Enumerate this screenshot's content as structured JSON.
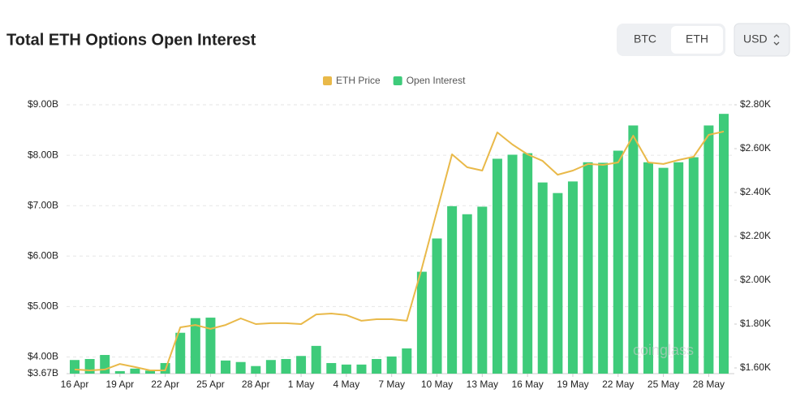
{
  "chart_data": {
    "type": "bar",
    "title": "Total ETH Options Open Interest",
    "watermark": "coinglass",
    "categories": [
      "16 Apr",
      null,
      null,
      "19 Apr",
      null,
      null,
      "22 Apr",
      null,
      null,
      "25 Apr",
      null,
      null,
      "28 Apr",
      null,
      null,
      "1 May",
      null,
      null,
      "4 May",
      null,
      null,
      "7 May",
      null,
      null,
      "10 May",
      null,
      null,
      "13 May",
      null,
      null,
      "16 May",
      null,
      null,
      "19 May",
      null,
      null,
      "22 May",
      null,
      null,
      "25 May",
      null,
      null,
      "28 May",
      null
    ],
    "series": [
      {
        "name": "ETH Price",
        "type": "line",
        "axis": "y2",
        "color": "#e9b949",
        "values": [
          1593,
          1589,
          1593,
          1618,
          1604,
          1589,
          1589,
          1785,
          1796,
          1778,
          1796,
          1826,
          1800,
          1804,
          1804,
          1800,
          1844,
          1848,
          1841,
          1815,
          1822,
          1822,
          1815,
          2055,
          2315,
          2574,
          2515,
          2500,
          2674,
          2619,
          2574,
          2544,
          2481,
          2500,
          2530,
          2526,
          2537,
          2659,
          2537,
          2530,
          2548,
          2563,
          2663,
          2678
        ]
      },
      {
        "name": "Open Interest",
        "type": "bar",
        "color": "#3ecb7a",
        "values": [
          3.94,
          3.96,
          4.04,
          3.72,
          3.77,
          3.73,
          3.88,
          4.48,
          4.77,
          4.78,
          3.93,
          3.9,
          3.82,
          3.94,
          3.96,
          4.02,
          4.22,
          3.88,
          3.85,
          3.85,
          3.96,
          4.01,
          4.17,
          5.69,
          6.35,
          6.99,
          6.83,
          6.98,
          7.93,
          8.01,
          8.04,
          7.46,
          7.25,
          7.48,
          7.86,
          7.85,
          8.09,
          8.59,
          7.86,
          7.75,
          7.86,
          7.96,
          8.59,
          8.82
        ]
      }
    ],
    "ylim": [
      3.67,
      9
    ],
    "yticks": [
      {
        "value": 3.67,
        "label": "$3.67B"
      },
      {
        "value": 4,
        "label": "$4.00B"
      },
      {
        "value": 5,
        "label": "$5.00B"
      },
      {
        "value": 6,
        "label": "$6.00B"
      },
      {
        "value": 7,
        "label": "$7.00B"
      },
      {
        "value": 8,
        "label": "$8.00B"
      },
      {
        "value": 9,
        "label": "$9.00B"
      }
    ],
    "y2lim": [
      1574,
      2800
    ],
    "y2ticks": [
      {
        "value": 1600,
        "label": "$1.60K"
      },
      {
        "value": 1800,
        "label": "$1.80K"
      },
      {
        "value": 2000,
        "label": "$2.00K"
      },
      {
        "value": 2200,
        "label": "$2.20K"
      },
      {
        "value": 2400,
        "label": "$2.40K"
      },
      {
        "value": 2600,
        "label": "$2.60K"
      },
      {
        "value": 2800,
        "label": "$2.80K"
      }
    ],
    "grid": true
  },
  "controls": {
    "tabs": [
      "BTC",
      "ETH"
    ],
    "currency": "USD"
  }
}
